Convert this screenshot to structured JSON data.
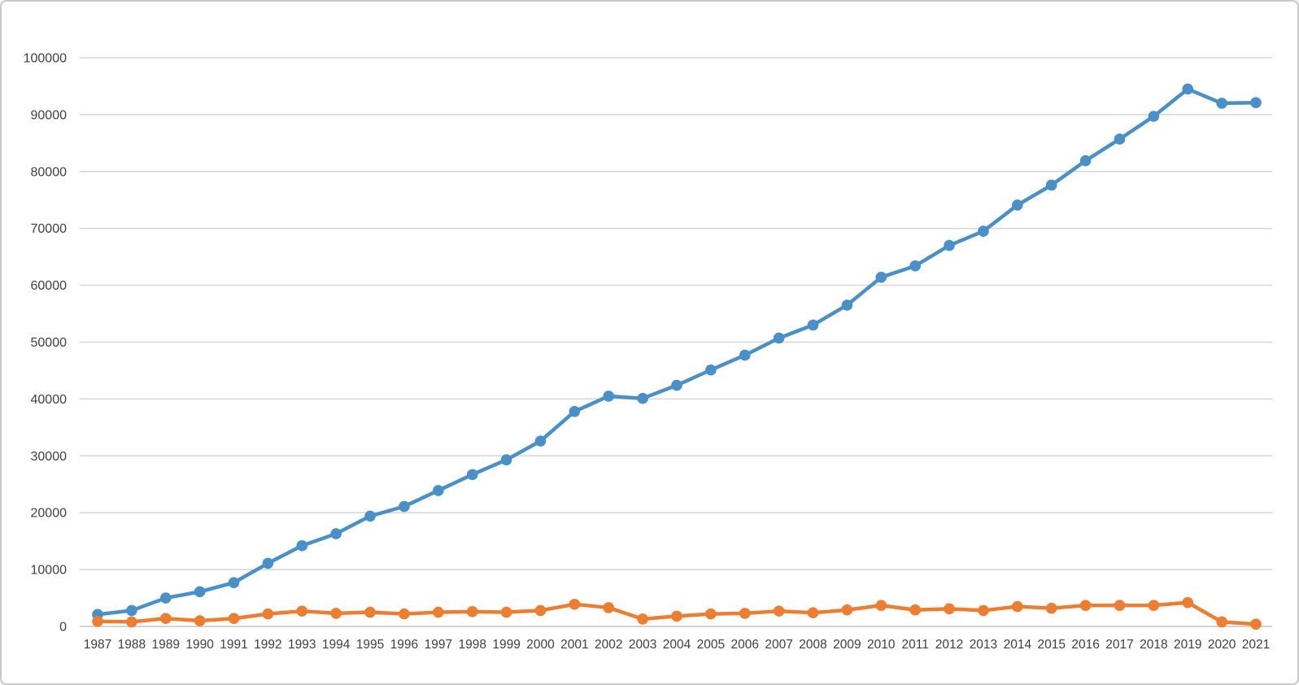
{
  "page": {
    "background_color": "#ffffff",
    "border_color": "#c9c9c9"
  },
  "chart_data": {
    "type": "line",
    "title": "",
    "xlabel": "",
    "ylabel": "",
    "grid": true,
    "legend": false,
    "ylim": [
      0,
      100000
    ],
    "y_ticks": [
      0,
      10000,
      20000,
      30000,
      40000,
      50000,
      60000,
      70000,
      80000,
      90000,
      100000
    ],
    "gridline_color": "#d6d6d6",
    "baseline_color": "#c6c6c6",
    "axis_text_color": "#3f3f3f",
    "x": [
      1987,
      1988,
      1989,
      1990,
      1991,
      1992,
      1993,
      1994,
      1995,
      1996,
      1997,
      1998,
      1999,
      2000,
      2001,
      2002,
      2003,
      2004,
      2005,
      2006,
      2007,
      2008,
      2009,
      2010,
      2011,
      2012,
      2013,
      2014,
      2015,
      2016,
      2017,
      2018,
      2019,
      2020,
      2021
    ],
    "series": [
      {
        "name": "blue",
        "color": "#4a90c8",
        "marker": "circle",
        "values": [
          2100,
          2800,
          5000,
          6100,
          7700,
          11100,
          14200,
          16300,
          19400,
          21100,
          23900,
          26700,
          29300,
          32600,
          37800,
          40500,
          40100,
          42400,
          45100,
          47700,
          50700,
          53000,
          56500,
          61400,
          63400,
          67000,
          69500,
          74100,
          77600,
          81900,
          85700,
          89700,
          94500,
          92000,
          92100
        ]
      },
      {
        "name": "orange",
        "color": "#ed7d31",
        "marker": "circle",
        "values": [
          900,
          800,
          1400,
          1000,
          1400,
          2200,
          2700,
          2300,
          2500,
          2200,
          2500,
          2600,
          2500,
          2800,
          3900,
          3300,
          1300,
          1800,
          2200,
          2300,
          2700,
          2400,
          2900,
          3700,
          2900,
          3100,
          2800,
          3500,
          3200,
          3700,
          3700,
          3700,
          4200,
          800,
          400
        ]
      }
    ]
  }
}
